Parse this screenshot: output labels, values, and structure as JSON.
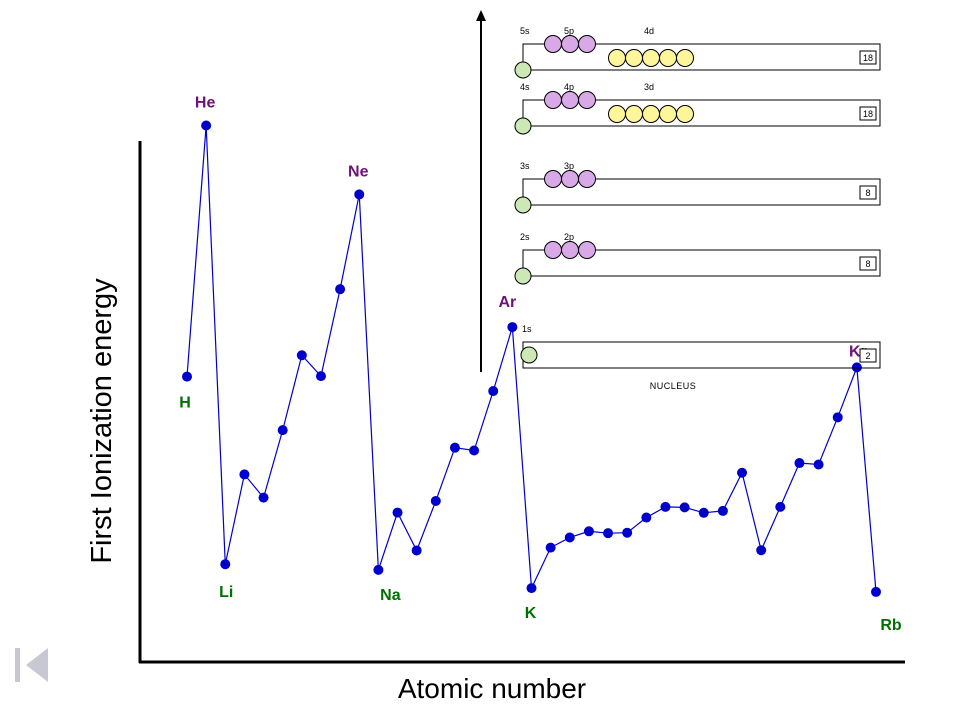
{
  "chart_data": {
    "type": "line",
    "xlabel": "Atomic number",
    "ylabel": "First Ionization energy",
    "x": [
      1,
      2,
      3,
      4,
      5,
      6,
      7,
      8,
      9,
      10,
      11,
      12,
      13,
      14,
      15,
      16,
      17,
      18,
      19,
      20,
      21,
      22,
      23,
      24,
      25,
      26,
      27,
      28,
      29,
      30,
      31,
      32,
      33,
      34,
      35,
      36,
      37
    ],
    "values": [
      1312,
      2372,
      520,
      899,
      801,
      1086,
      1402,
      1314,
      1681,
      2081,
      496,
      738,
      578,
      787,
      1012,
      1000,
      1251,
      1521,
      419,
      590,
      633,
      659,
      651,
      653,
      717,
      762,
      760,
      737,
      745,
      906,
      579,
      762,
      947,
      941,
      1140,
      1351,
      403
    ],
    "series_color": "#0000cc",
    "labeled_points": [
      {
        "label": "H",
        "x": 1,
        "color": "#007000"
      },
      {
        "label": "He",
        "x": 2,
        "color": "#70107a"
      },
      {
        "label": "Li",
        "x": 3,
        "color": "#007000"
      },
      {
        "label": "Ne",
        "x": 10,
        "color": "#70107a"
      },
      {
        "label": "Na",
        "x": 11,
        "color": "#007000"
      },
      {
        "label": "Ar",
        "x": 18,
        "color": "#70107a"
      },
      {
        "label": "K",
        "x": 19,
        "color": "#007000"
      },
      {
        "label": "Kr",
        "x": 36,
        "color": "#70107a"
      },
      {
        "label": "Rb",
        "x": 37,
        "color": "#007000"
      }
    ],
    "grid": false
  },
  "inset": {
    "nucleus_label": "NUCLEUS",
    "shells": [
      {
        "id": "5",
        "sublabels": [
          "5s",
          "5p",
          "4d"
        ],
        "s_fill": "#cce8b4",
        "p_fill": "#d9a8e6",
        "d_fill": "#fff59a",
        "capacity": "18"
      },
      {
        "id": "4",
        "sublabels": [
          "4s",
          "4p",
          "3d"
        ],
        "s_fill": "#cce8b4",
        "p_fill": "#d9a8e6",
        "d_fill": "#fff59a",
        "capacity": "18"
      },
      {
        "id": "3",
        "sublabels": [
          "3s",
          "3p"
        ],
        "s_fill": "#cce8b4",
        "p_fill": "#d9a8e6",
        "capacity": "8"
      },
      {
        "id": "2",
        "sublabels": [
          "2s",
          "2p"
        ],
        "s_fill": "#cce8b4",
        "p_fill": "#d9a8e6",
        "capacity": "8"
      },
      {
        "id": "1",
        "sublabels": [
          "1s"
        ],
        "s_fill": "#cce8b4",
        "capacity": "2"
      }
    ]
  },
  "nav": {
    "icon": "first-slide-icon"
  }
}
